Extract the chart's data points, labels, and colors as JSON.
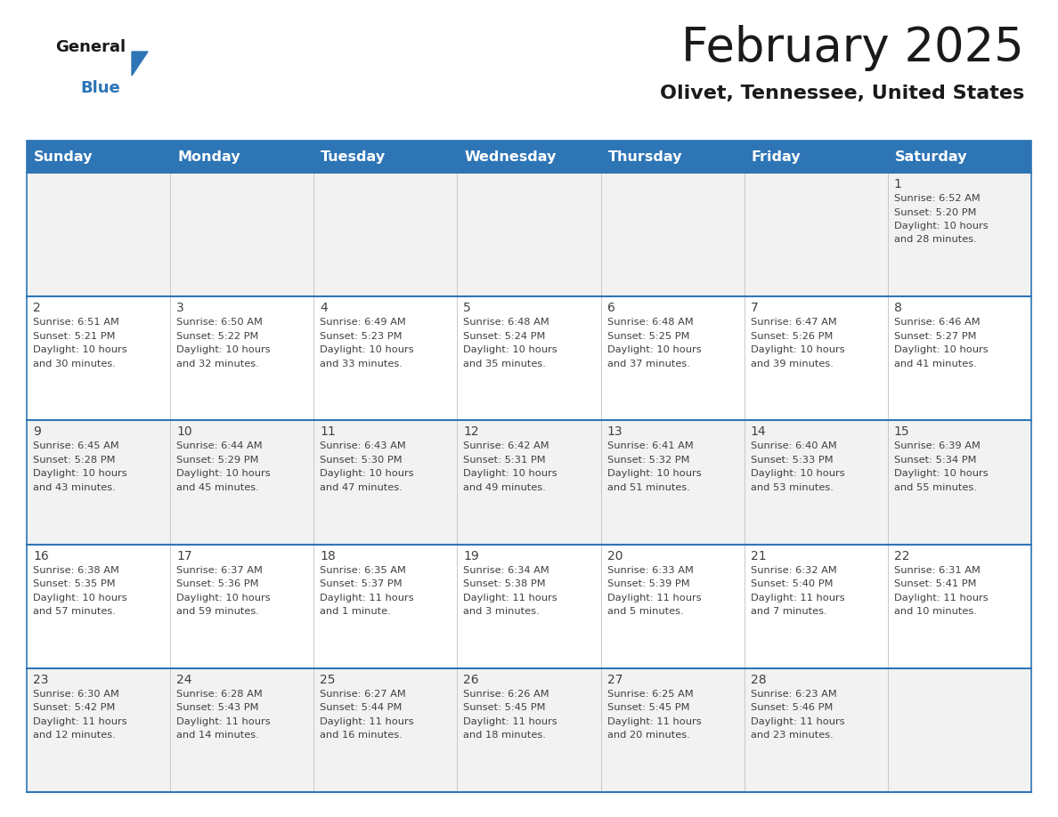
{
  "title": "February 2025",
  "subtitle": "Olivet, Tennessee, United States",
  "header_color": "#2E75B6",
  "header_text_color": "#FFFFFF",
  "day_names": [
    "Sunday",
    "Monday",
    "Tuesday",
    "Wednesday",
    "Thursday",
    "Friday",
    "Saturday"
  ],
  "bg_color": "#FFFFFF",
  "cell_bg_row0": "#F2F2F2",
  "cell_bg_row1": "#FFFFFF",
  "cell_bg_row2": "#F2F2F2",
  "cell_bg_row3": "#FFFFFF",
  "cell_bg_row4": "#F2F2F2",
  "row_line_color": "#2E75B6",
  "sep_line_color": "#C0C0C0",
  "text_color": "#404040",
  "title_color": "#1A1A1A",
  "subtitle_color": "#1A1A1A",
  "logo_text_color": "#1A1A1A",
  "logo_blue_color": "#2E75B6",
  "days": [
    {
      "day": 1,
      "col": 6,
      "row": 0,
      "sunrise": "6:52 AM",
      "sunset": "5:20 PM",
      "daylight_h": "10 hours",
      "daylight_m": "28 minutes."
    },
    {
      "day": 2,
      "col": 0,
      "row": 1,
      "sunrise": "6:51 AM",
      "sunset": "5:21 PM",
      "daylight_h": "10 hours",
      "daylight_m": "30 minutes."
    },
    {
      "day": 3,
      "col": 1,
      "row": 1,
      "sunrise": "6:50 AM",
      "sunset": "5:22 PM",
      "daylight_h": "10 hours",
      "daylight_m": "32 minutes."
    },
    {
      "day": 4,
      "col": 2,
      "row": 1,
      "sunrise": "6:49 AM",
      "sunset": "5:23 PM",
      "daylight_h": "10 hours",
      "daylight_m": "33 minutes."
    },
    {
      "day": 5,
      "col": 3,
      "row": 1,
      "sunrise": "6:48 AM",
      "sunset": "5:24 PM",
      "daylight_h": "10 hours",
      "daylight_m": "35 minutes."
    },
    {
      "day": 6,
      "col": 4,
      "row": 1,
      "sunrise": "6:48 AM",
      "sunset": "5:25 PM",
      "daylight_h": "10 hours",
      "daylight_m": "37 minutes."
    },
    {
      "day": 7,
      "col": 5,
      "row": 1,
      "sunrise": "6:47 AM",
      "sunset": "5:26 PM",
      "daylight_h": "10 hours",
      "daylight_m": "39 minutes."
    },
    {
      "day": 8,
      "col": 6,
      "row": 1,
      "sunrise": "6:46 AM",
      "sunset": "5:27 PM",
      "daylight_h": "10 hours",
      "daylight_m": "41 minutes."
    },
    {
      "day": 9,
      "col": 0,
      "row": 2,
      "sunrise": "6:45 AM",
      "sunset": "5:28 PM",
      "daylight_h": "10 hours",
      "daylight_m": "43 minutes."
    },
    {
      "day": 10,
      "col": 1,
      "row": 2,
      "sunrise": "6:44 AM",
      "sunset": "5:29 PM",
      "daylight_h": "10 hours",
      "daylight_m": "45 minutes."
    },
    {
      "day": 11,
      "col": 2,
      "row": 2,
      "sunrise": "6:43 AM",
      "sunset": "5:30 PM",
      "daylight_h": "10 hours",
      "daylight_m": "47 minutes."
    },
    {
      "day": 12,
      "col": 3,
      "row": 2,
      "sunrise": "6:42 AM",
      "sunset": "5:31 PM",
      "daylight_h": "10 hours",
      "daylight_m": "49 minutes."
    },
    {
      "day": 13,
      "col": 4,
      "row": 2,
      "sunrise": "6:41 AM",
      "sunset": "5:32 PM",
      "daylight_h": "10 hours",
      "daylight_m": "51 minutes."
    },
    {
      "day": 14,
      "col": 5,
      "row": 2,
      "sunrise": "6:40 AM",
      "sunset": "5:33 PM",
      "daylight_h": "10 hours",
      "daylight_m": "53 minutes."
    },
    {
      "day": 15,
      "col": 6,
      "row": 2,
      "sunrise": "6:39 AM",
      "sunset": "5:34 PM",
      "daylight_h": "10 hours",
      "daylight_m": "55 minutes."
    },
    {
      "day": 16,
      "col": 0,
      "row": 3,
      "sunrise": "6:38 AM",
      "sunset": "5:35 PM",
      "daylight_h": "10 hours",
      "daylight_m": "57 minutes."
    },
    {
      "day": 17,
      "col": 1,
      "row": 3,
      "sunrise": "6:37 AM",
      "sunset": "5:36 PM",
      "daylight_h": "10 hours",
      "daylight_m": "59 minutes."
    },
    {
      "day": 18,
      "col": 2,
      "row": 3,
      "sunrise": "6:35 AM",
      "sunset": "5:37 PM",
      "daylight_h": "11 hours",
      "daylight_m": "1 minute."
    },
    {
      "day": 19,
      "col": 3,
      "row": 3,
      "sunrise": "6:34 AM",
      "sunset": "5:38 PM",
      "daylight_h": "11 hours",
      "daylight_m": "3 minutes."
    },
    {
      "day": 20,
      "col": 4,
      "row": 3,
      "sunrise": "6:33 AM",
      "sunset": "5:39 PM",
      "daylight_h": "11 hours",
      "daylight_m": "5 minutes."
    },
    {
      "day": 21,
      "col": 5,
      "row": 3,
      "sunrise": "6:32 AM",
      "sunset": "5:40 PM",
      "daylight_h": "11 hours",
      "daylight_m": "7 minutes."
    },
    {
      "day": 22,
      "col": 6,
      "row": 3,
      "sunrise": "6:31 AM",
      "sunset": "5:41 PM",
      "daylight_h": "11 hours",
      "daylight_m": "10 minutes."
    },
    {
      "day": 23,
      "col": 0,
      "row": 4,
      "sunrise": "6:30 AM",
      "sunset": "5:42 PM",
      "daylight_h": "11 hours",
      "daylight_m": "12 minutes."
    },
    {
      "day": 24,
      "col": 1,
      "row": 4,
      "sunrise": "6:28 AM",
      "sunset": "5:43 PM",
      "daylight_h": "11 hours",
      "daylight_m": "14 minutes."
    },
    {
      "day": 25,
      "col": 2,
      "row": 4,
      "sunrise": "6:27 AM",
      "sunset": "5:44 PM",
      "daylight_h": "11 hours",
      "daylight_m": "16 minutes."
    },
    {
      "day": 26,
      "col": 3,
      "row": 4,
      "sunrise": "6:26 AM",
      "sunset": "5:45 PM",
      "daylight_h": "11 hours",
      "daylight_m": "18 minutes."
    },
    {
      "day": 27,
      "col": 4,
      "row": 4,
      "sunrise": "6:25 AM",
      "sunset": "5:45 PM",
      "daylight_h": "11 hours",
      "daylight_m": "20 minutes."
    },
    {
      "day": 28,
      "col": 5,
      "row": 4,
      "sunrise": "6:23 AM",
      "sunset": "5:46 PM",
      "daylight_h": "11 hours",
      "daylight_m": "23 minutes."
    }
  ],
  "num_rows": 5,
  "num_cols": 7
}
